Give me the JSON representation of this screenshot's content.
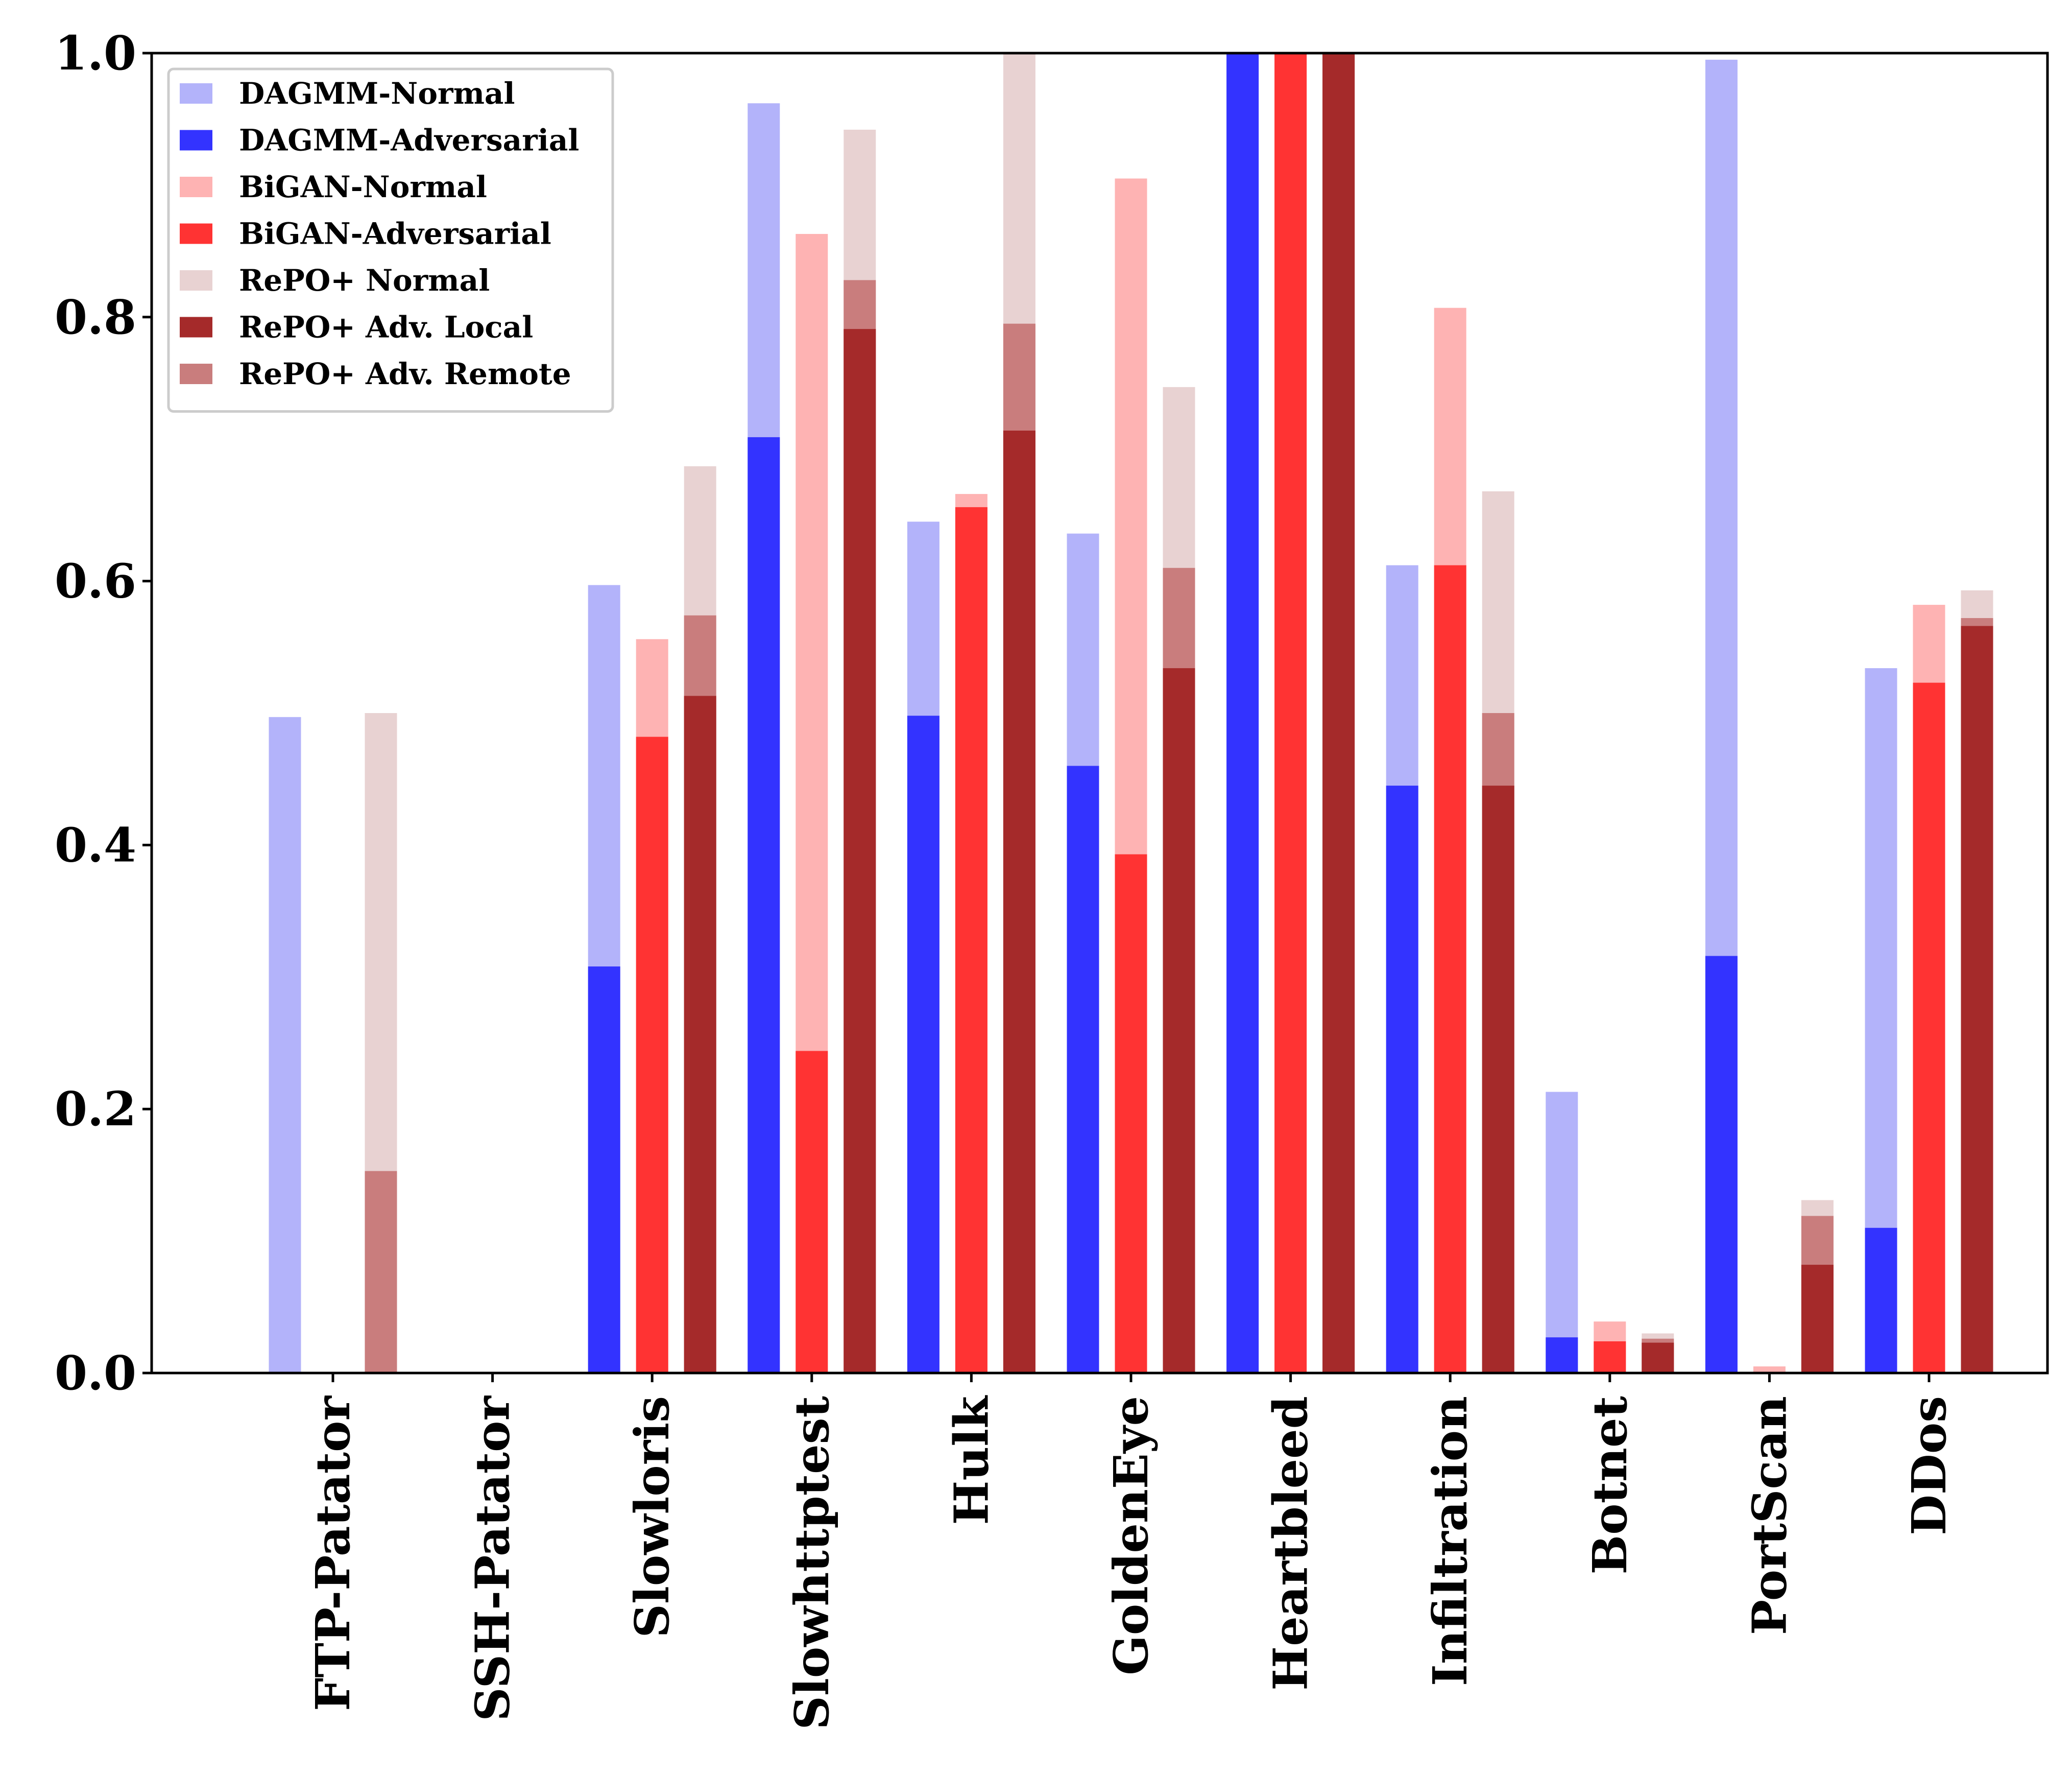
{
  "chart_data": {
    "type": "bar",
    "title": "",
    "xlabel": "",
    "ylabel": "",
    "ylim": [
      0.0,
      1.0
    ],
    "yticks": [
      "0.0",
      "0.2",
      "0.4",
      "0.6",
      "0.8",
      "1.0"
    ],
    "legend_location": "upper-left",
    "grid": false,
    "categories": [
      "FTP-Patator",
      "SSH-Patator",
      "Slowloris",
      "Slowhttptest",
      "Hulk",
      "GoldenEye",
      "Heartbleed",
      "Infiltration",
      "Botnet",
      "PortScan",
      "DDos"
    ],
    "series": [
      {
        "name": "DAGMM-Normal",
        "color": "#b3b3fa",
        "group": "DAGMM",
        "values": [
          0.497,
          0.0,
          0.597,
          0.962,
          0.645,
          0.636,
          1.0,
          0.612,
          0.213,
          0.995,
          0.534
        ]
      },
      {
        "name": "DAGMM-Adversarial",
        "color": "#3333ff",
        "group": "DAGMM",
        "values": [
          0.0,
          0.0,
          0.308,
          0.709,
          0.498,
          0.46,
          1.0,
          0.445,
          0.027,
          0.316,
          0.11
        ]
      },
      {
        "name": "BiGAN-Normal",
        "color": "#feb3b3",
        "group": "BiGAN",
        "values": [
          0.0,
          0.0,
          0.556,
          0.863,
          0.666,
          0.905,
          1.0,
          0.807,
          0.039,
          0.005,
          0.582
        ]
      },
      {
        "name": "BiGAN-Adversarial",
        "color": "#ff3333",
        "group": "BiGAN",
        "values": [
          0.0,
          0.0,
          0.482,
          0.244,
          0.656,
          0.393,
          1.0,
          0.612,
          0.024,
          0.0,
          0.523
        ]
      },
      {
        "name": "RePO+ Normal",
        "color": "#e8d2d2",
        "group": "RePO+",
        "values": [
          0.5,
          0.0,
          0.687,
          0.942,
          1.0,
          0.747,
          1.0,
          0.668,
          0.03,
          0.131,
          0.593
        ]
      },
      {
        "name": "RePO+ Adv. Local",
        "color": "#a52a2a",
        "group": "RePO+",
        "values": [
          0.0,
          0.0,
          0.513,
          0.791,
          0.714,
          0.534,
          1.0,
          0.445,
          0.023,
          0.082,
          0.566
        ]
      },
      {
        "name": "RePO+ Adv. Remote",
        "color": "#c97d7d",
        "group": "RePO+",
        "values": [
          0.153,
          0.0,
          0.574,
          0.828,
          0.795,
          0.61,
          1.0,
          0.5,
          0.026,
          0.119,
          0.572
        ]
      }
    ]
  }
}
